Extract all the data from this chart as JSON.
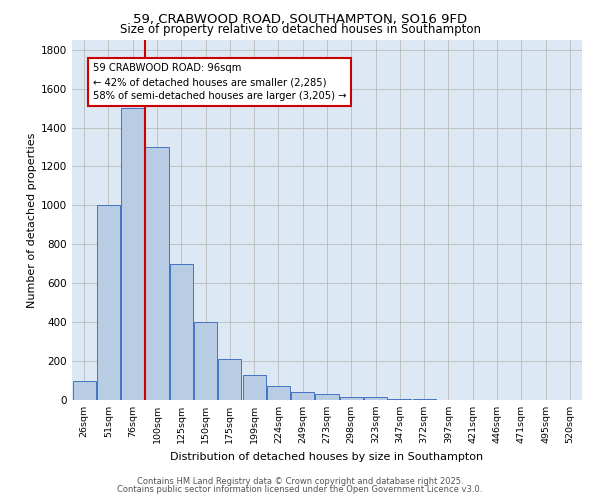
{
  "title1": "59, CRABWOOD ROAD, SOUTHAMPTON, SO16 9FD",
  "title2": "Size of property relative to detached houses in Southampton",
  "xlabel": "Distribution of detached houses by size in Southampton",
  "ylabel": "Number of detached properties",
  "categories": [
    "26sqm",
    "51sqm",
    "76sqm",
    "100sqm",
    "125sqm",
    "150sqm",
    "175sqm",
    "199sqm",
    "224sqm",
    "249sqm",
    "273sqm",
    "298sqm",
    "323sqm",
    "347sqm",
    "372sqm",
    "397sqm",
    "421sqm",
    "446sqm",
    "471sqm",
    "495sqm",
    "520sqm"
  ],
  "values": [
    100,
    1000,
    1500,
    1300,
    700,
    400,
    210,
    130,
    70,
    40,
    30,
    15,
    15,
    5,
    5,
    2,
    2,
    1,
    0,
    0,
    0
  ],
  "bar_color": "#b8cce4",
  "bar_edge_color": "#4472c4",
  "bg_color": "#dde8f5",
  "grid_color": "#bbbbbb",
  "annotation_text": "59 CRABWOOD ROAD: 96sqm\n← 42% of detached houses are smaller (2,285)\n58% of semi-detached houses are larger (3,205) →",
  "vline_color": "#cc0000",
  "annotation_box_edge": "#cc0000",
  "ylim": [
    0,
    1850
  ],
  "yticks": [
    0,
    200,
    400,
    600,
    800,
    1000,
    1200,
    1400,
    1600,
    1800
  ],
  "footer1": "Contains HM Land Registry data © Crown copyright and database right 2025.",
  "footer2": "Contains public sector information licensed under the Open Government Licence v3.0."
}
